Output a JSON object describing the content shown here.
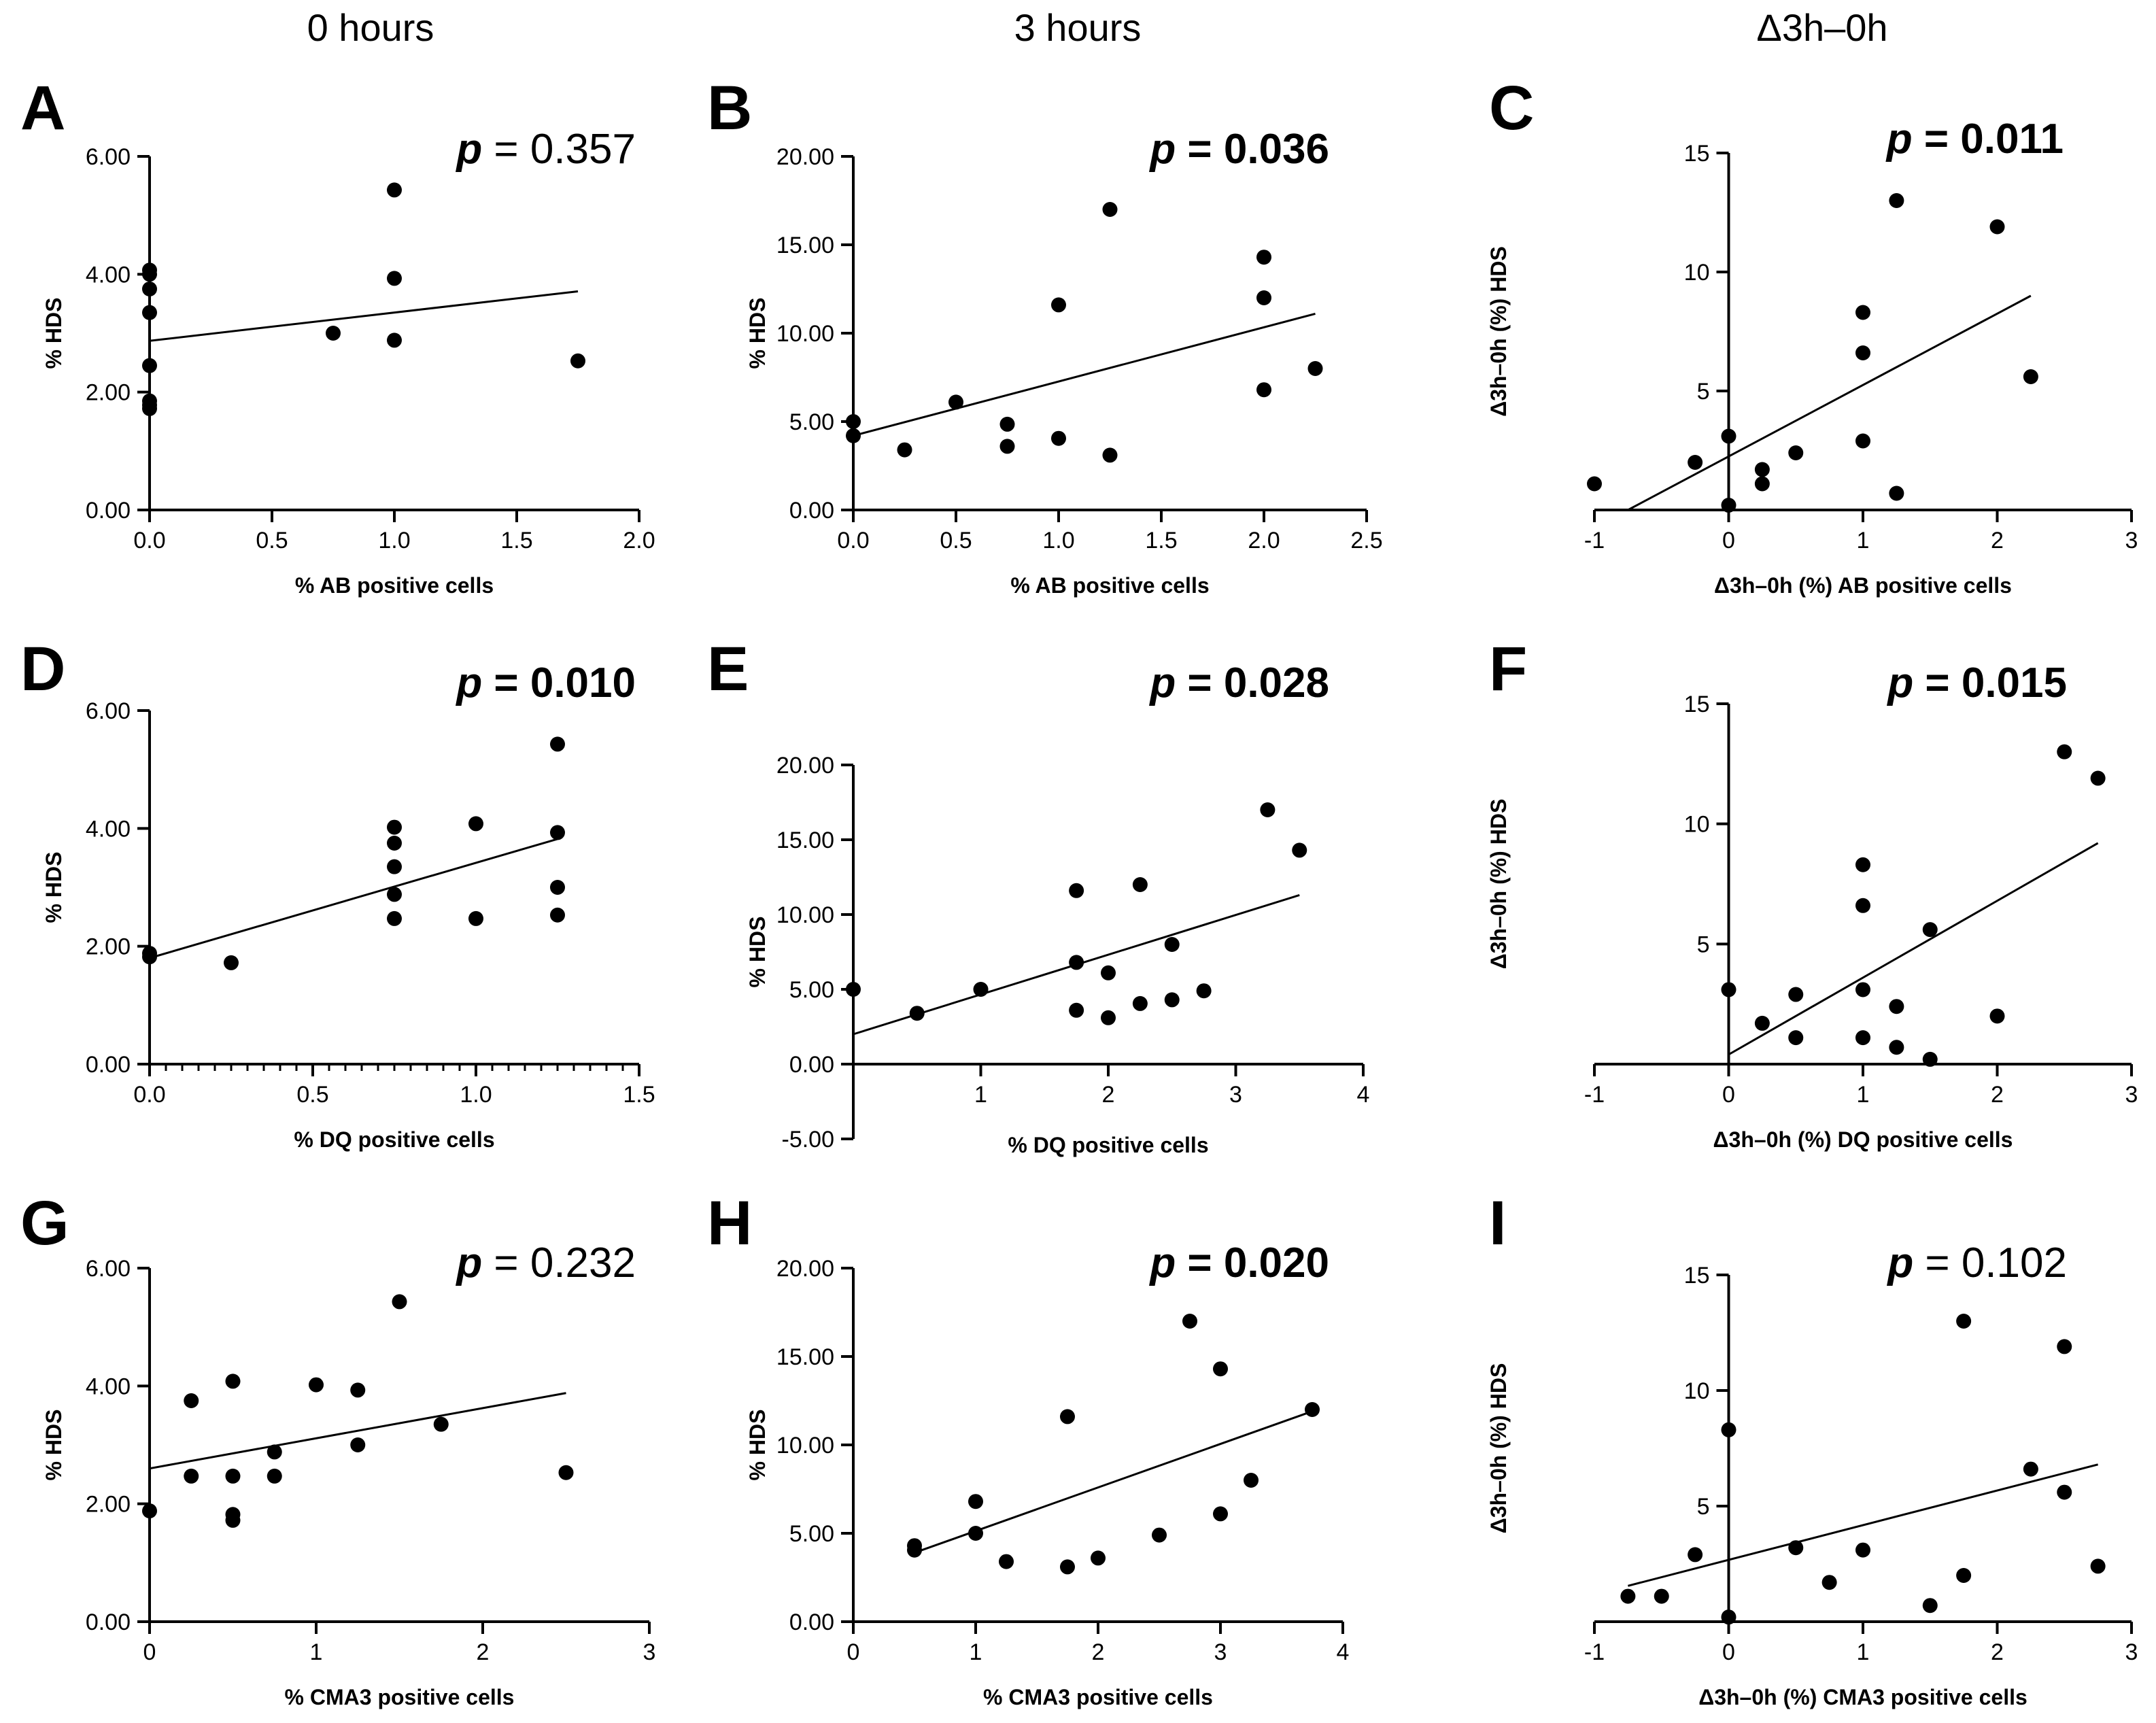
{
  "column_titles": [
    "0 hours",
    "3 hours",
    "Δ3h–0h"
  ],
  "chart_data": [
    {
      "panel": "A",
      "type": "scatter",
      "pvalue_label": "p",
      "pvalue_text": " = 0.357",
      "significant": false,
      "xlabel": "% AB positive cells",
      "ylabel": "% HDS",
      "xlim": [
        0,
        2.0
      ],
      "ylim": [
        0,
        6.0
      ],
      "xticks": [
        0,
        0.5,
        1.0,
        1.5,
        2.0
      ],
      "xtick_labels": [
        "0.0",
        "0.5",
        "1.0",
        "1.5",
        "2.0"
      ],
      "yticks": [
        0,
        2,
        4,
        6
      ],
      "ytick_labels": [
        "0.00",
        "2.00",
        "4.00",
        "6.00"
      ],
      "axes_cross": "origin-left",
      "points": [
        [
          0,
          4.07
        ],
        [
          0,
          4.0
        ],
        [
          0,
          3.75
        ],
        [
          0,
          3.35
        ],
        [
          0,
          2.45
        ],
        [
          0,
          1.85
        ],
        [
          0,
          1.78
        ],
        [
          0,
          1.72
        ],
        [
          0.75,
          3.0
        ],
        [
          1.0,
          5.43
        ],
        [
          1.0,
          3.93
        ],
        [
          1.0,
          2.88
        ],
        [
          1.75,
          2.53
        ]
      ],
      "fit": [
        [
          0,
          2.87
        ],
        [
          1.75,
          3.71
        ]
      ]
    },
    {
      "panel": "B",
      "type": "scatter",
      "pvalue_label": "p",
      "pvalue_text": " = 0.036",
      "significant": true,
      "xlabel": "% AB positive cells",
      "ylabel": "% HDS",
      "xlim": [
        0,
        2.5
      ],
      "ylim": [
        0,
        20.0
      ],
      "xticks": [
        0,
        0.5,
        1.0,
        1.5,
        2.0,
        2.5
      ],
      "xtick_labels": [
        "0.0",
        "0.5",
        "1.0",
        "1.5",
        "2.0",
        "2.5"
      ],
      "yticks": [
        0,
        5,
        10,
        15,
        20
      ],
      "ytick_labels": [
        "0.00",
        "5.00",
        "10.00",
        "15.00",
        "20.00"
      ],
      "axes_cross": "origin-left",
      "points": [
        [
          0,
          5.0
        ],
        [
          0,
          4.2
        ],
        [
          0.25,
          3.4
        ],
        [
          0.5,
          6.1
        ],
        [
          0.75,
          4.85
        ],
        [
          0.75,
          3.6
        ],
        [
          1.0,
          11.6
        ],
        [
          1.0,
          4.05
        ],
        [
          1.25,
          17.0
        ],
        [
          1.25,
          3.1
        ],
        [
          2.0,
          14.3
        ],
        [
          2.0,
          12.0
        ],
        [
          2.0,
          6.8
        ],
        [
          2.25,
          8.0
        ]
      ],
      "fit": [
        [
          0,
          4.2
        ],
        [
          2.25,
          11.1
        ]
      ]
    },
    {
      "panel": "C",
      "type": "scatter",
      "pvalue_label": "p",
      "pvalue_text": " = 0.011",
      "significant": true,
      "xlabel": "Δ3h–0h (%) AB positive cells",
      "ylabel": "Δ3h–0h (%) HDS",
      "xlim": [
        -1,
        3
      ],
      "ylim": [
        0,
        15
      ],
      "xticks": [
        -1,
        0,
        1,
        2,
        3
      ],
      "xtick_labels": [
        "-1",
        "0",
        "1",
        "2",
        "3"
      ],
      "yticks": [
        5,
        10,
        15
      ],
      "ytick_labels": [
        "5",
        "10",
        "15"
      ],
      "axes_cross": "y-at-zero",
      "points": [
        [
          -1.0,
          1.1
        ],
        [
          -0.25,
          2.0
        ],
        [
          0,
          3.1
        ],
        [
          0,
          0.2
        ],
        [
          0.25,
          1.7
        ],
        [
          0.25,
          1.1
        ],
        [
          0.5,
          2.4
        ],
        [
          1.0,
          8.3
        ],
        [
          1.0,
          6.6
        ],
        [
          1.0,
          2.9
        ],
        [
          1.25,
          13.0
        ],
        [
          1.25,
          0.7
        ],
        [
          2.0,
          11.9
        ],
        [
          2.25,
          5.6
        ]
      ],
      "fit": [
        [
          -0.75,
          0
        ],
        [
          2.25,
          9.0
        ]
      ]
    },
    {
      "panel": "D",
      "type": "scatter",
      "pvalue_label": "p",
      "pvalue_text": " = 0.010",
      "significant": true,
      "xlabel": "% DQ positive cells",
      "ylabel": "% HDS",
      "xlim": [
        0,
        1.5
      ],
      "ylim": [
        0,
        6.0
      ],
      "xticks": [
        0,
        0.5,
        1.0,
        1.5
      ],
      "xtick_labels": [
        "0.0",
        "0.5",
        "1.0",
        "1.5"
      ],
      "yticks": [
        0,
        2,
        4,
        6
      ],
      "ytick_labels": [
        "0.00",
        "2.00",
        "4.00",
        "6.00"
      ],
      "axes_cross": "origin-left",
      "minor_xticks": 0.05,
      "points": [
        [
          0,
          1.88
        ],
        [
          0,
          1.82
        ],
        [
          0.25,
          1.72
        ],
        [
          0.75,
          4.02
        ],
        [
          0.75,
          3.75
        ],
        [
          0.75,
          3.35
        ],
        [
          0.75,
          2.88
        ],
        [
          0.75,
          2.47
        ],
        [
          1.0,
          4.08
        ],
        [
          1.0,
          2.47
        ],
        [
          1.25,
          5.43
        ],
        [
          1.25,
          3.93
        ],
        [
          1.25,
          3.0
        ],
        [
          1.25,
          2.53
        ]
      ],
      "fit": [
        [
          0,
          1.8
        ],
        [
          1.25,
          3.82
        ]
      ]
    },
    {
      "panel": "E",
      "type": "scatter",
      "pvalue_label": "p",
      "pvalue_text": " = 0.028",
      "significant": true,
      "xlabel": "% DQ positive cells",
      "ylabel": "% HDS",
      "xlim": [
        0,
        4
      ],
      "ylim": [
        -5.0,
        20.0
      ],
      "xticks": [
        1,
        2,
        3,
        4
      ],
      "xtick_labels": [
        "1",
        "2",
        "3",
        "4"
      ],
      "yticks": [
        -5,
        0,
        5,
        10,
        15,
        20
      ],
      "ytick_labels": [
        "-5.00",
        "0.00",
        "5.00",
        "10.00",
        "15.00",
        "20.00"
      ],
      "axes_cross": "x-at-zero",
      "points": [
        [
          0,
          5.0
        ],
        [
          0.5,
          3.4
        ],
        [
          1.0,
          5.0
        ],
        [
          1.75,
          11.6
        ],
        [
          1.75,
          6.8
        ],
        [
          1.75,
          3.6
        ],
        [
          2.0,
          6.1
        ],
        [
          2.0,
          3.1
        ],
        [
          2.25,
          12.0
        ],
        [
          2.25,
          4.05
        ],
        [
          2.5,
          8.0
        ],
        [
          2.5,
          4.3
        ],
        [
          2.75,
          4.9
        ],
        [
          3.25,
          17.0
        ],
        [
          3.5,
          14.3
        ]
      ],
      "fit": [
        [
          0,
          2.0
        ],
        [
          3.5,
          11.3
        ]
      ]
    },
    {
      "panel": "F",
      "type": "scatter",
      "pvalue_label": "p",
      "pvalue_text": " = 0.015",
      "significant": true,
      "xlabel": "Δ3h–0h (%) DQ positive cells",
      "ylabel": "Δ3h–0h (%) HDS",
      "xlim": [
        -1,
        3
      ],
      "ylim": [
        0,
        15
      ],
      "xticks": [
        -1,
        0,
        1,
        2,
        3
      ],
      "xtick_labels": [
        "-1",
        "0",
        "1",
        "2",
        "3"
      ],
      "yticks": [
        5,
        10,
        15
      ],
      "ytick_labels": [
        "5",
        "10",
        "15"
      ],
      "axes_cross": "y-at-zero",
      "points": [
        [
          0,
          3.1
        ],
        [
          0.25,
          1.7
        ],
        [
          0.5,
          2.9
        ],
        [
          0.5,
          1.1
        ],
        [
          1.0,
          8.3
        ],
        [
          1.0,
          6.6
        ],
        [
          1.0,
          3.1
        ],
        [
          1.0,
          1.1
        ],
        [
          1.25,
          2.4
        ],
        [
          1.25,
          0.7
        ],
        [
          1.5,
          5.6
        ],
        [
          1.5,
          0.2
        ],
        [
          2.0,
          2.0
        ],
        [
          2.5,
          13.0
        ],
        [
          2.75,
          11.9
        ]
      ],
      "fit": [
        [
          0,
          0.4
        ],
        [
          2.75,
          9.2
        ]
      ]
    },
    {
      "panel": "G",
      "type": "scatter",
      "pvalue_label": "p",
      "pvalue_text": " = 0.232",
      "significant": false,
      "xlabel": "% CMA3 positive cells",
      "ylabel": "% HDS",
      "xlim": [
        0,
        3
      ],
      "ylim": [
        0,
        6.0
      ],
      "xticks": [
        0,
        1,
        2,
        3
      ],
      "xtick_labels": [
        "0",
        "1",
        "2",
        "3"
      ],
      "yticks": [
        0,
        2,
        4,
        6
      ],
      "ytick_labels": [
        "0.00",
        "2.00",
        "4.00",
        "6.00"
      ],
      "axes_cross": "origin-left",
      "points": [
        [
          0,
          1.88
        ],
        [
          0.25,
          3.75
        ],
        [
          0.25,
          2.47
        ],
        [
          0.5,
          4.08
        ],
        [
          0.5,
          2.47
        ],
        [
          0.5,
          1.82
        ],
        [
          0.5,
          1.72
        ],
        [
          0.75,
          2.88
        ],
        [
          0.75,
          2.47
        ],
        [
          1.0,
          4.02
        ],
        [
          1.25,
          3.93
        ],
        [
          1.25,
          3.0
        ],
        [
          1.5,
          5.43
        ],
        [
          1.75,
          3.35
        ],
        [
          2.5,
          2.53
        ]
      ],
      "fit": [
        [
          0,
          2.6
        ],
        [
          2.5,
          3.88
        ]
      ]
    },
    {
      "panel": "H",
      "type": "scatter",
      "pvalue_label": "p",
      "pvalue_text": " = 0.020",
      "significant": true,
      "xlabel": "% CMA3 positive cells",
      "ylabel": "% HDS",
      "xlim": [
        0,
        4
      ],
      "ylim": [
        0,
        20.0
      ],
      "xticks": [
        0,
        1,
        2,
        3,
        4
      ],
      "xtick_labels": [
        "0",
        "1",
        "2",
        "3",
        "4"
      ],
      "yticks": [
        0,
        5,
        10,
        15,
        20
      ],
      "ytick_labels": [
        "0.00",
        "5.00",
        "10.00",
        "15.00",
        "20.00"
      ],
      "axes_cross": "origin-left",
      "points": [
        [
          0.5,
          4.3
        ],
        [
          0.5,
          4.05
        ],
        [
          1.0,
          6.8
        ],
        [
          1.0,
          5.0
        ],
        [
          1.25,
          3.4
        ],
        [
          1.75,
          11.6
        ],
        [
          1.75,
          3.1
        ],
        [
          2.0,
          3.6
        ],
        [
          2.5,
          4.9
        ],
        [
          2.75,
          17.0
        ],
        [
          3.0,
          14.3
        ],
        [
          3.0,
          6.1
        ],
        [
          3.25,
          8.0
        ],
        [
          3.75,
          12.0
        ]
      ],
      "fit": [
        [
          0.5,
          3.9
        ],
        [
          3.75,
          11.9
        ]
      ]
    },
    {
      "panel": "I",
      "type": "scatter",
      "pvalue_label": "p",
      "pvalue_text": " = 0.102",
      "significant": false,
      "xlabel": "Δ3h–0h (%) CMA3 positive cells",
      "ylabel": "Δ3h–0h (%) HDS",
      "xlim": [
        -1,
        3
      ],
      "ylim": [
        0,
        15
      ],
      "xticks": [
        -1,
        0,
        1,
        2,
        3
      ],
      "xtick_labels": [
        "-1",
        "0",
        "1",
        "2",
        "3"
      ],
      "yticks": [
        5,
        10,
        15
      ],
      "ytick_labels": [
        "5",
        "10",
        "15"
      ],
      "axes_cross": "y-at-zero",
      "points": [
        [
          -0.75,
          1.1
        ],
        [
          -0.5,
          1.1
        ],
        [
          -0.25,
          2.9
        ],
        [
          0,
          8.3
        ],
        [
          0,
          0.2
        ],
        [
          0.5,
          3.2
        ],
        [
          0.75,
          1.7
        ],
        [
          1.0,
          3.1
        ],
        [
          1.5,
          0.7
        ],
        [
          1.75,
          13.0
        ],
        [
          1.75,
          2.0
        ],
        [
          2.25,
          6.6
        ],
        [
          2.5,
          11.9
        ],
        [
          2.5,
          5.6
        ],
        [
          2.75,
          2.4
        ]
      ],
      "fit": [
        [
          -0.75,
          1.55
        ],
        [
          2.75,
          6.8
        ]
      ]
    }
  ]
}
